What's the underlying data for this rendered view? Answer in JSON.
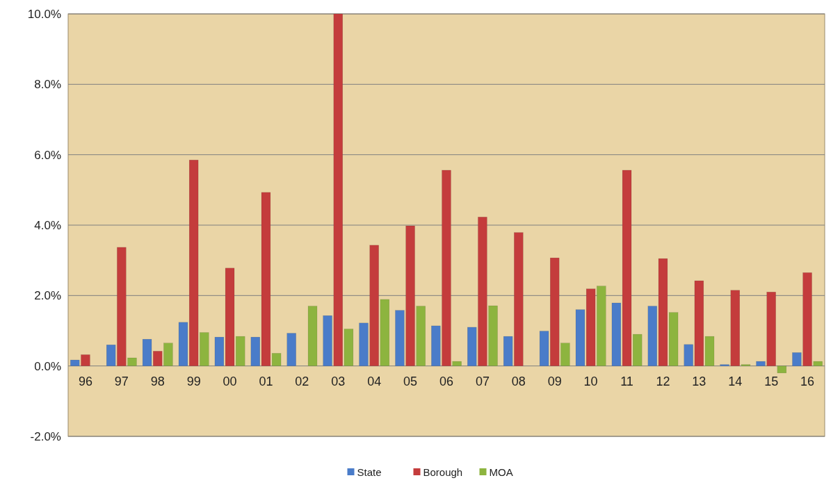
{
  "chart_data": {
    "type": "bar",
    "categories": [
      "96",
      "97",
      "98",
      "99",
      "00",
      "01",
      "02",
      "03",
      "04",
      "05",
      "06",
      "07",
      "08",
      "09",
      "10",
      "11",
      "12",
      "13",
      "14",
      "15",
      "16"
    ],
    "series": [
      {
        "name": "State",
        "color": "#4a7cc9",
        "values": [
          0.17,
          0.6,
          0.76,
          1.24,
          0.82,
          0.82,
          0.93,
          1.43,
          1.22,
          1.58,
          1.14,
          1.1,
          0.84,
          0.99,
          1.6,
          1.79,
          1.7,
          0.61,
          0.04,
          0.13,
          0.38
        ]
      },
      {
        "name": "Borough",
        "color": "#c43c3c",
        "values": [
          0.32,
          3.37,
          0.42,
          5.85,
          2.78,
          4.93,
          null,
          10.0,
          3.43,
          3.98,
          5.56,
          4.23,
          3.79,
          3.07,
          2.19,
          5.56,
          3.05,
          2.42,
          2.15,
          2.1,
          2.65
        ]
      },
      {
        "name": "MOA",
        "color": "#8db43f",
        "values": [
          null,
          0.23,
          0.65,
          0.95,
          0.84,
          0.36,
          1.7,
          1.05,
          1.89,
          1.7,
          0.13,
          1.71,
          null,
          0.65,
          2.27,
          0.9,
          1.52,
          0.84,
          0.04,
          -0.2,
          0.13
        ]
      }
    ],
    "ylim": [
      -2,
      10
    ],
    "yticks": [
      {
        "value": -2,
        "label": "-2.0%"
      },
      {
        "value": 0,
        "label": "0.0%"
      },
      {
        "value": 2,
        "label": "2.0%"
      },
      {
        "value": 4,
        "label": "4.0%"
      },
      {
        "value": 6,
        "label": "6.0%"
      },
      {
        "value": 8,
        "label": "8.0%"
      },
      {
        "value": 10,
        "label": "10.0%"
      }
    ],
    "grid": "y",
    "legend": "bottom"
  }
}
